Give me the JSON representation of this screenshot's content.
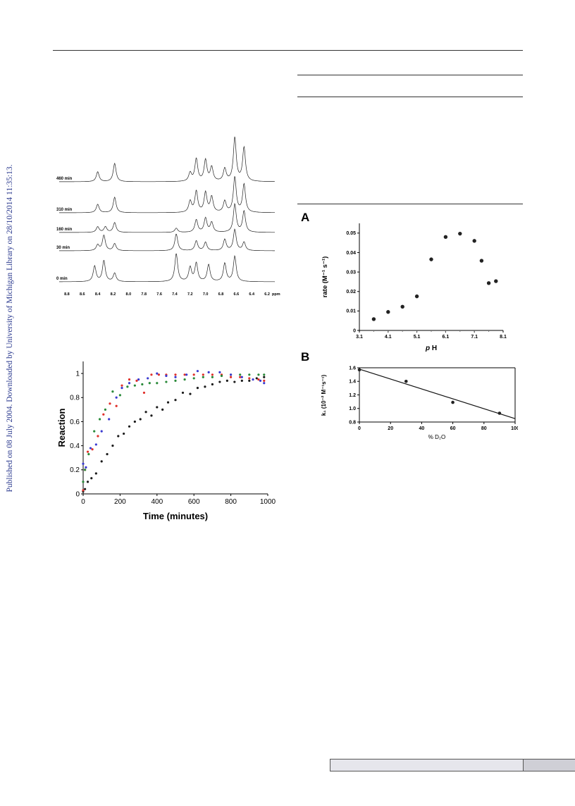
{
  "sidebar": {
    "text": "Published on 08 July 2004. Downloaded by University of Michigan Library on 28/10/2014 11:35:13."
  },
  "nmr_figure": {
    "trace_labels": [
      "460 min",
      "310 min",
      "160 min",
      "30 min",
      "0 min"
    ],
    "axis_ticks": [
      "8.8",
      "8.6",
      "8.4",
      "8.2",
      "8.0",
      "7.8",
      "7.6",
      "7.4",
      "7.2",
      "7.0",
      "6.8",
      "6.6",
      "6.4",
      "6.2"
    ],
    "axis_unit": "ppm"
  },
  "panel_labels": {
    "a": "A",
    "b": "B"
  },
  "chart_data": [
    {
      "id": "reaction-time",
      "type": "scatter",
      "xlabel": "Time (minutes)",
      "ylabel": "Reaction",
      "xlim": [
        0,
        1000
      ],
      "ylim": [
        0,
        1.1
      ],
      "xticks": [
        0,
        200,
        400,
        600,
        800,
        1000
      ],
      "yticks": [
        0,
        0.2,
        0.4,
        0.6,
        0.8,
        1
      ],
      "grid": false,
      "series": [
        {
          "color": "#1a1a1a",
          "x": [
            0,
            10,
            25,
            45,
            70,
            100,
            130,
            160,
            190,
            220,
            250,
            280,
            310,
            340,
            370,
            400,
            430,
            460,
            500,
            540,
            580,
            620,
            660,
            700,
            740,
            780,
            820,
            860,
            900,
            940,
            980
          ],
          "y": [
            0.02,
            0.04,
            0.1,
            0.13,
            0.17,
            0.27,
            0.33,
            0.4,
            0.48,
            0.5,
            0.56,
            0.6,
            0.62,
            0.68,
            0.65,
            0.72,
            0.7,
            0.76,
            0.78,
            0.84,
            0.83,
            0.88,
            0.89,
            0.91,
            0.93,
            0.94,
            0.93,
            0.94,
            0.94,
            0.96,
            0.97
          ]
        },
        {
          "color": "#e0302a",
          "x": [
            0,
            10,
            25,
            50,
            80,
            110,
            145,
            180,
            210,
            250,
            290,
            330,
            370,
            410,
            450,
            500,
            550,
            600,
            650,
            700,
            750,
            800,
            850,
            900,
            950,
            980
          ],
          "y": [
            0.03,
            0.2,
            0.35,
            0.37,
            0.48,
            0.66,
            0.75,
            0.73,
            0.9,
            0.95,
            0.94,
            0.84,
            0.99,
            0.99,
            0.99,
            0.99,
            0.99,
            0.99,
            0.99,
            0.99,
            0.99,
            0.97,
            0.97,
            0.96,
            0.95,
            0.94
          ]
        },
        {
          "color": "#2a8a3a",
          "x": [
            0,
            10,
            30,
            60,
            90,
            120,
            160,
            200,
            240,
            280,
            320,
            360,
            400,
            450,
            500,
            550,
            600,
            650,
            700,
            750,
            800,
            850,
            900,
            950,
            980
          ],
          "y": [
            0.1,
            0.2,
            0.33,
            0.52,
            0.62,
            0.7,
            0.85,
            0.82,
            0.89,
            0.9,
            0.91,
            0.92,
            0.92,
            0.93,
            0.94,
            0.95,
            0.96,
            0.97,
            0.97,
            0.98,
            0.99,
            0.99,
            0.99,
            0.99,
            0.99
          ]
        },
        {
          "color": "#3a3ad0",
          "x": [
            0,
            15,
            40,
            70,
            100,
            140,
            180,
            210,
            250,
            300,
            350,
            400,
            450,
            500,
            560,
            620,
            680,
            740,
            800,
            860,
            920,
            960,
            980
          ],
          "y": [
            0.25,
            0.22,
            0.38,
            0.41,
            0.52,
            0.62,
            0.8,
            0.88,
            0.92,
            0.95,
            0.96,
            1.0,
            0.98,
            0.97,
            0.99,
            1.02,
            1.01,
            1.01,
            0.99,
            0.97,
            0.95,
            0.94,
            0.92
          ]
        }
      ]
    },
    {
      "id": "rate-ph",
      "type": "scatter",
      "xlabel_parts": [
        "p",
        " H"
      ],
      "ylabel": "rate (M⁻¹ s⁻¹)",
      "xlim": [
        3.1,
        8.1
      ],
      "ylim": [
        0,
        0.055
      ],
      "xticks": [
        3.1,
        4.1,
        5.1,
        6.1,
        7.1,
        8.1
      ],
      "yticks": [
        0,
        0.01,
        0.02,
        0.03,
        0.04,
        0.05
      ],
      "grid": false,
      "series": [
        {
          "color": "#222222",
          "x": [
            3.6,
            4.1,
            4.6,
            5.1,
            5.6,
            6.1,
            6.6,
            7.1,
            7.35,
            7.6,
            7.85
          ],
          "y": [
            0.0058,
            0.0095,
            0.0122,
            0.0175,
            0.0365,
            0.048,
            0.0497,
            0.046,
            0.0358,
            0.0243,
            0.0253
          ]
        }
      ]
    },
    {
      "id": "k1-d2o",
      "type": "scatter",
      "xlabel": "% D₂O",
      "ylabel": "k₁ (10⁻² M⁻¹s⁻¹)",
      "xlim": [
        0,
        100
      ],
      "ylim": [
        0.8,
        1.6
      ],
      "xticks": [
        0,
        20,
        40,
        60,
        80,
        100
      ],
      "yticks": [
        0.8,
        1.0,
        1.2,
        1.4,
        1.6
      ],
      "grid": false,
      "series": [
        {
          "color": "#222222",
          "x": [
            0,
            30,
            60,
            90
          ],
          "y": [
            1.57,
            1.4,
            1.09,
            0.93
          ]
        }
      ],
      "fit_line": {
        "x": [
          0,
          100
        ],
        "y": [
          1.58,
          0.85
        ]
      }
    }
  ]
}
